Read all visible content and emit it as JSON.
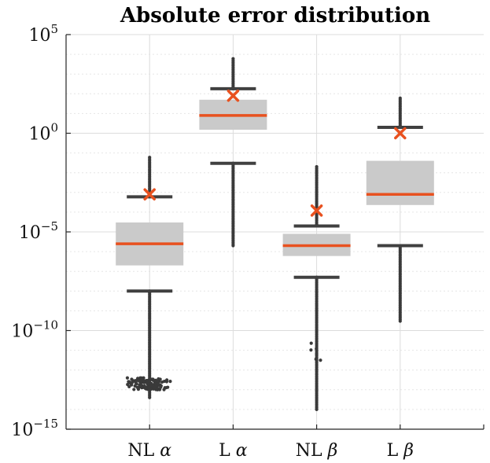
{
  "chart_data": {
    "type": "boxplot",
    "title": "Absolute error distribution",
    "y_scale": "log",
    "ylim": [
      1e-15,
      100000
    ],
    "y_ticks": [
      {
        "value": 1e-15,
        "base": "10",
        "exp": "−15"
      },
      {
        "value": 1e-10,
        "base": "10",
        "exp": "−10"
      },
      {
        "value": 1e-05,
        "base": "10",
        "exp": "−5"
      },
      {
        "value": 1,
        "base": "10",
        "exp": "0"
      },
      {
        "value": 100000,
        "base": "10",
        "exp": "5"
      }
    ],
    "grid": true,
    "colors": {
      "box": "#cacaca",
      "median": "#e8511f",
      "mean_marker": "#e8511f",
      "whisker": "#404040",
      "outlier": "#3a3a3a"
    },
    "categories": [
      {
        "main": "NL",
        "greek": "α"
      },
      {
        "main": "L",
        "greek": "α"
      },
      {
        "main": "NL",
        "greek": "β"
      },
      {
        "main": "L",
        "greek": "β"
      }
    ],
    "series": [
      {
        "q1": 2e-07,
        "median": 2.5e-06,
        "q3": 3e-05,
        "whisker_low": 1e-08,
        "whisker_high": 0.0006,
        "mean": 0.0008,
        "outlier_max": 0.06,
        "outlier_min": 4e-14,
        "low_cluster": [
          1e-13,
          4e-13
        ]
      },
      {
        "q1": 1.5,
        "median": 8,
        "q3": 50,
        "whisker_low": 0.03,
        "whisker_high": 180,
        "mean": 80,
        "outlier_max": 6000,
        "outlier_min": 2e-06
      },
      {
        "q1": 6e-07,
        "median": 2e-06,
        "q3": 8e-06,
        "whisker_low": 5e-08,
        "whisker_high": 2e-05,
        "mean": 0.00012,
        "outlier_max": 0.02,
        "outlier_min": 1e-14,
        "low_cluster": [
          3e-12,
          3e-11
        ]
      },
      {
        "q1": 0.00023,
        "median": 0.0008,
        "q3": 0.04,
        "whisker_low": 2e-06,
        "whisker_high": 2,
        "mean": 1,
        "outlier_max": 60,
        "outlier_min": 3e-10
      }
    ]
  }
}
